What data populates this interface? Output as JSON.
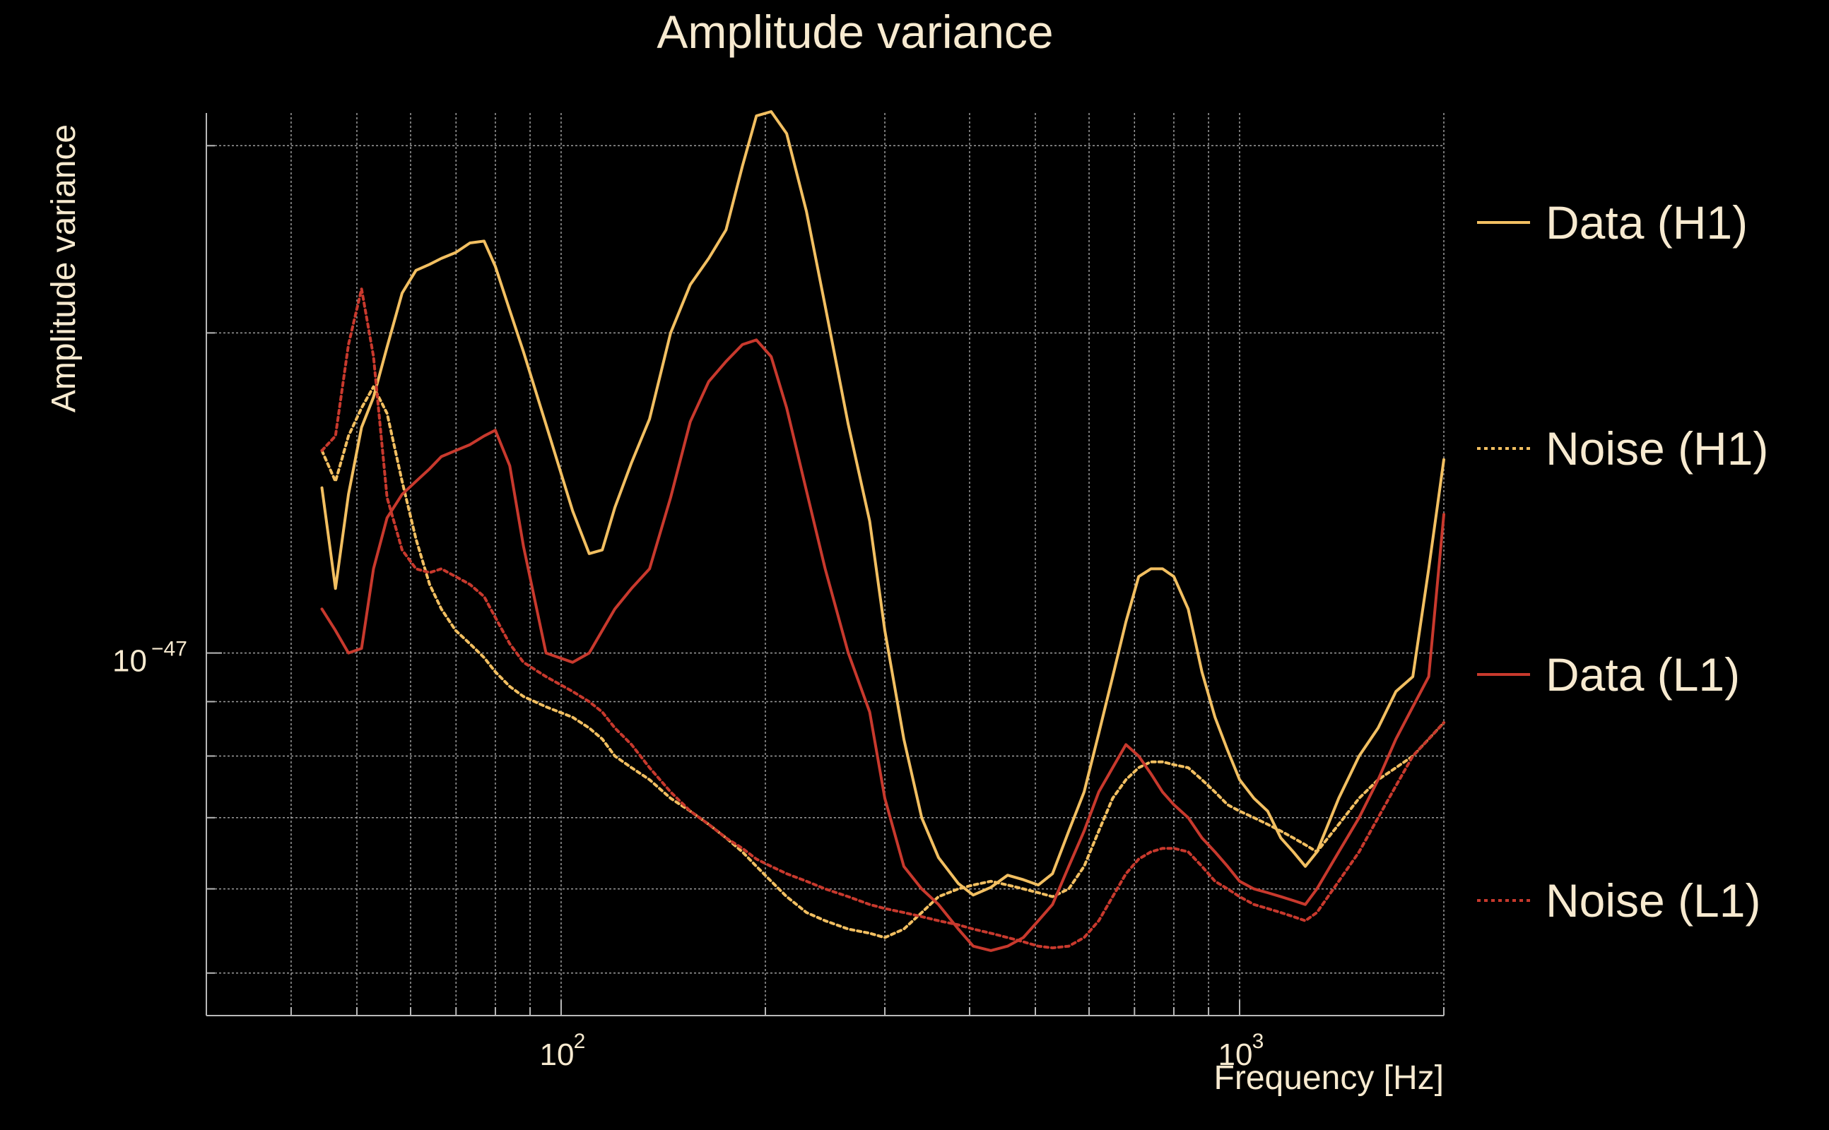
{
  "chart_data": {
    "type": "line",
    "title": "Amplitude variance",
    "xlabel": "Frequency [Hz]",
    "ylabel": "Amplitude variance",
    "xscale": "log",
    "yscale": "log",
    "xlim": [
      30,
      2000
    ],
    "ylim": [
      4.56e-48,
      3.22e-47
    ],
    "grid": true,
    "legend_position": "right",
    "x_major_ticks": [
      {
        "value": 100,
        "base": "10",
        "exp": "2"
      },
      {
        "value": 1000,
        "base": "10",
        "exp": "3"
      }
    ],
    "y_major_ticks": [
      {
        "value": 1e-47,
        "base": "10",
        "exp": "−47"
      }
    ],
    "series": [
      {
        "name": "Data (H1)",
        "color": "#f2bf61",
        "style": "solid",
        "points": [
          [
            44.4,
            1.43e-47
          ],
          [
            46.5,
            1.15e-47
          ],
          [
            48.6,
            1.41e-47
          ],
          [
            50.8,
            1.63e-47
          ],
          [
            52.9,
            1.74e-47
          ],
          [
            55.4,
            1.94e-47
          ],
          [
            58.3,
            2.18e-47
          ],
          [
            61.1,
            2.29e-47
          ],
          [
            64,
            2.32e-47
          ],
          [
            66.6,
            2.35e-47
          ],
          [
            69.9,
            2.38e-47
          ],
          [
            73.4,
            2.43e-47
          ],
          [
            77,
            2.44e-47
          ],
          [
            80,
            2.31e-47
          ],
          [
            84,
            2.1e-47
          ],
          [
            88,
            1.92e-47
          ],
          [
            95,
            1.64e-47
          ],
          [
            104,
            1.36e-47
          ],
          [
            110,
            1.24e-47
          ],
          [
            115,
            1.25e-47
          ],
          [
            120,
            1.37e-47
          ],
          [
            127,
            1.51e-47
          ],
          [
            135,
            1.66e-47
          ],
          [
            145,
            2e-47
          ],
          [
            155,
            2.22e-47
          ],
          [
            165,
            2.35e-47
          ],
          [
            175,
            2.5e-47
          ],
          [
            185,
            2.87e-47
          ],
          [
            194,
            3.2e-47
          ],
          [
            204,
            3.23e-47
          ],
          [
            215,
            3.08e-47
          ],
          [
            230,
            2.6e-47
          ],
          [
            245,
            2.12e-47
          ],
          [
            265,
            1.64e-47
          ],
          [
            285,
            1.33e-47
          ],
          [
            300,
            1.05e-47
          ],
          [
            320,
            8.3e-48
          ],
          [
            340,
            7e-48
          ],
          [
            360,
            6.42e-48
          ],
          [
            385,
            6.07e-48
          ],
          [
            405,
            5.92e-48
          ],
          [
            430,
            6.02e-48
          ],
          [
            455,
            6.18e-48
          ],
          [
            480,
            6.12e-48
          ],
          [
            505,
            6.05e-48
          ],
          [
            530,
            6.2e-48
          ],
          [
            560,
            6.8e-48
          ],
          [
            590,
            7.4e-48
          ],
          [
            620,
            8.4e-48
          ],
          [
            650,
            9.5e-48
          ],
          [
            680,
            1.07e-47
          ],
          [
            710,
            1.18e-47
          ],
          [
            740,
            1.2e-47
          ],
          [
            770,
            1.2e-47
          ],
          [
            800,
            1.18e-47
          ],
          [
            840,
            1.1e-47
          ],
          [
            880,
            9.6e-48
          ],
          [
            920,
            8.7e-48
          ],
          [
            960,
            8.1e-48
          ],
          [
            1000,
            7.6e-48
          ],
          [
            1050,
            7.3e-48
          ],
          [
            1100,
            7.1e-48
          ],
          [
            1150,
            6.7e-48
          ],
          [
            1200,
            6.5e-48
          ],
          [
            1250,
            6.3e-48
          ],
          [
            1300,
            6.5e-48
          ],
          [
            1400,
            7.3e-48
          ],
          [
            1500,
            8e-48
          ],
          [
            1600,
            8.5e-48
          ],
          [
            1700,
            9.2e-48
          ],
          [
            1800,
            9.5e-48
          ],
          [
            1900,
            1.2e-47
          ],
          [
            2000,
            1.52e-47
          ]
        ]
      },
      {
        "name": "Noise (H1)",
        "color": "#f2bf61",
        "style": "dotted",
        "points": [
          [
            44.4,
            1.55e-47
          ],
          [
            46.5,
            1.45e-47
          ],
          [
            48.6,
            1.6e-47
          ],
          [
            50.8,
            1.7e-47
          ],
          [
            52.9,
            1.78e-47
          ],
          [
            55.4,
            1.68e-47
          ],
          [
            58.3,
            1.45e-47
          ],
          [
            61.1,
            1.28e-47
          ],
          [
            64,
            1.16e-47
          ],
          [
            66.6,
            1.1e-47
          ],
          [
            69.9,
            1.05e-47
          ],
          [
            73.4,
            1.02e-47
          ],
          [
            77,
            9.9e-48
          ],
          [
            80,
            9.6e-48
          ],
          [
            84,
            9.3e-48
          ],
          [
            88,
            9.1e-48
          ],
          [
            95,
            8.9e-48
          ],
          [
            104,
            8.7e-48
          ],
          [
            110,
            8.5e-48
          ],
          [
            115,
            8.3e-48
          ],
          [
            120,
            8e-48
          ],
          [
            127,
            7.8e-48
          ],
          [
            135,
            7.6e-48
          ],
          [
            145,
            7.3e-48
          ],
          [
            155,
            7.1e-48
          ],
          [
            165,
            6.9e-48
          ],
          [
            175,
            6.7e-48
          ],
          [
            185,
            6.5e-48
          ],
          [
            194,
            6.3e-48
          ],
          [
            204,
            6.1e-48
          ],
          [
            215,
            5.9e-48
          ],
          [
            230,
            5.7e-48
          ],
          [
            245,
            5.6e-48
          ],
          [
            265,
            5.5e-48
          ],
          [
            285,
            5.45e-48
          ],
          [
            300,
            5.4e-48
          ],
          [
            320,
            5.5e-48
          ],
          [
            340,
            5.7e-48
          ],
          [
            360,
            5.9e-48
          ],
          [
            385,
            6e-48
          ],
          [
            405,
            6.05e-48
          ],
          [
            430,
            6.1e-48
          ],
          [
            455,
            6.05e-48
          ],
          [
            480,
            6e-48
          ],
          [
            505,
            5.95e-48
          ],
          [
            530,
            5.9e-48
          ],
          [
            560,
            6e-48
          ],
          [
            590,
            6.3e-48
          ],
          [
            620,
            6.8e-48
          ],
          [
            650,
            7.3e-48
          ],
          [
            680,
            7.6e-48
          ],
          [
            710,
            7.8e-48
          ],
          [
            740,
            7.9e-48
          ],
          [
            770,
            7.9e-48
          ],
          [
            800,
            7.85e-48
          ],
          [
            840,
            7.8e-48
          ],
          [
            880,
            7.6e-48
          ],
          [
            920,
            7.4e-48
          ],
          [
            960,
            7.2e-48
          ],
          [
            1000,
            7.1e-48
          ],
          [
            1050,
            7e-48
          ],
          [
            1100,
            6.9e-48
          ],
          [
            1150,
            6.8e-48
          ],
          [
            1200,
            6.7e-48
          ],
          [
            1250,
            6.6e-48
          ],
          [
            1300,
            6.5e-48
          ],
          [
            1400,
            6.9e-48
          ],
          [
            1500,
            7.3e-48
          ],
          [
            1600,
            7.6e-48
          ],
          [
            1700,
            7.8e-48
          ],
          [
            1800,
            8e-48
          ],
          [
            1900,
            8.3e-48
          ],
          [
            2000,
            8.6e-48
          ]
        ]
      },
      {
        "name": "Data (L1)",
        "color": "#c8392d",
        "style": "solid",
        "points": [
          [
            44.4,
            1.1e-47
          ],
          [
            46.5,
            1.05e-47
          ],
          [
            48.6,
            1e-47
          ],
          [
            50.8,
            1.01e-47
          ],
          [
            52.9,
            1.2e-47
          ],
          [
            55.4,
            1.34e-47
          ],
          [
            58.3,
            1.41e-47
          ],
          [
            61.1,
            1.45e-47
          ],
          [
            64,
            1.49e-47
          ],
          [
            66.6,
            1.53e-47
          ],
          [
            69.9,
            1.55e-47
          ],
          [
            73.4,
            1.57e-47
          ],
          [
            77,
            1.6e-47
          ],
          [
            80,
            1.62e-47
          ],
          [
            84,
            1.5e-47
          ],
          [
            88,
            1.26e-47
          ],
          [
            95,
            1e-47
          ],
          [
            104,
            9.8e-48
          ],
          [
            110,
            1e-47
          ],
          [
            115,
            1.05e-47
          ],
          [
            120,
            1.1e-47
          ],
          [
            127,
            1.15e-47
          ],
          [
            135,
            1.2e-47
          ],
          [
            145,
            1.4e-47
          ],
          [
            155,
            1.65e-47
          ],
          [
            165,
            1.8e-47
          ],
          [
            175,
            1.88e-47
          ],
          [
            185,
            1.95e-47
          ],
          [
            194,
            1.97e-47
          ],
          [
            204,
            1.9e-47
          ],
          [
            215,
            1.7e-47
          ],
          [
            230,
            1.42e-47
          ],
          [
            245,
            1.2e-47
          ],
          [
            265,
            1e-47
          ],
          [
            285,
            8.8e-48
          ],
          [
            300,
            7.3e-48
          ],
          [
            320,
            6.3e-48
          ],
          [
            340,
            6e-48
          ],
          [
            360,
            5.8e-48
          ],
          [
            385,
            5.5e-48
          ],
          [
            405,
            5.3e-48
          ],
          [
            430,
            5.25e-48
          ],
          [
            455,
            5.3e-48
          ],
          [
            480,
            5.4e-48
          ],
          [
            505,
            5.6e-48
          ],
          [
            530,
            5.8e-48
          ],
          [
            560,
            6.3e-48
          ],
          [
            590,
            6.8e-48
          ],
          [
            620,
            7.4e-48
          ],
          [
            650,
            7.8e-48
          ],
          [
            680,
            8.2e-48
          ],
          [
            710,
            8e-48
          ],
          [
            740,
            7.7e-48
          ],
          [
            770,
            7.4e-48
          ],
          [
            800,
            7.2e-48
          ],
          [
            840,
            7e-48
          ],
          [
            880,
            6.7e-48
          ],
          [
            920,
            6.5e-48
          ],
          [
            960,
            6.3e-48
          ],
          [
            1000,
            6.1e-48
          ],
          [
            1050,
            6e-48
          ],
          [
            1100,
            5.95e-48
          ],
          [
            1150,
            5.9e-48
          ],
          [
            1200,
            5.85e-48
          ],
          [
            1250,
            5.8e-48
          ],
          [
            1300,
            6e-48
          ],
          [
            1400,
            6.5e-48
          ],
          [
            1500,
            7e-48
          ],
          [
            1600,
            7.6e-48
          ],
          [
            1700,
            8.3e-48
          ],
          [
            1800,
            8.9e-48
          ],
          [
            1900,
            9.5e-48
          ],
          [
            2000,
            1.35e-47
          ]
        ]
      },
      {
        "name": "Noise (L1)",
        "color": "#c8392d",
        "style": "dotted",
        "points": [
          [
            44.4,
            1.55e-47
          ],
          [
            46.5,
            1.6e-47
          ],
          [
            48.6,
            1.95e-47
          ],
          [
            50.8,
            2.2e-47
          ],
          [
            52.9,
            1.9e-47
          ],
          [
            55.4,
            1.4e-47
          ],
          [
            58.3,
            1.25e-47
          ],
          [
            61.1,
            1.2e-47
          ],
          [
            64,
            1.19e-47
          ],
          [
            66.6,
            1.2e-47
          ],
          [
            69.9,
            1.18e-47
          ],
          [
            73.4,
            1.16e-47
          ],
          [
            77,
            1.13e-47
          ],
          [
            80,
            1.08e-47
          ],
          [
            84,
            1.02e-47
          ],
          [
            88,
            9.8e-48
          ],
          [
            95,
            9.5e-48
          ],
          [
            104,
            9.2e-48
          ],
          [
            110,
            9e-48
          ],
          [
            115,
            8.8e-48
          ],
          [
            120,
            8.5e-48
          ],
          [
            127,
            8.2e-48
          ],
          [
            135,
            7.8e-48
          ],
          [
            145,
            7.4e-48
          ],
          [
            155,
            7.1e-48
          ],
          [
            165,
            6.9e-48
          ],
          [
            175,
            6.7e-48
          ],
          [
            185,
            6.55e-48
          ],
          [
            194,
            6.4e-48
          ],
          [
            204,
            6.3e-48
          ],
          [
            215,
            6.2e-48
          ],
          [
            230,
            6.1e-48
          ],
          [
            245,
            6e-48
          ],
          [
            265,
            5.9e-48
          ],
          [
            285,
            5.8e-48
          ],
          [
            300,
            5.75e-48
          ],
          [
            320,
            5.7e-48
          ],
          [
            340,
            5.65e-48
          ],
          [
            360,
            5.6e-48
          ],
          [
            385,
            5.55e-48
          ],
          [
            405,
            5.5e-48
          ],
          [
            430,
            5.45e-48
          ],
          [
            455,
            5.4e-48
          ],
          [
            480,
            5.35e-48
          ],
          [
            505,
            5.3e-48
          ],
          [
            530,
            5.28e-48
          ],
          [
            560,
            5.3e-48
          ],
          [
            590,
            5.4e-48
          ],
          [
            620,
            5.6e-48
          ],
          [
            650,
            5.9e-48
          ],
          [
            680,
            6.2e-48
          ],
          [
            710,
            6.4e-48
          ],
          [
            740,
            6.5e-48
          ],
          [
            770,
            6.55e-48
          ],
          [
            800,
            6.55e-48
          ],
          [
            840,
            6.5e-48
          ],
          [
            880,
            6.3e-48
          ],
          [
            920,
            6.1e-48
          ],
          [
            960,
            6e-48
          ],
          [
            1000,
            5.9e-48
          ],
          [
            1050,
            5.8e-48
          ],
          [
            1100,
            5.75e-48
          ],
          [
            1150,
            5.7e-48
          ],
          [
            1200,
            5.65e-48
          ],
          [
            1250,
            5.6e-48
          ],
          [
            1300,
            5.7e-48
          ],
          [
            1400,
            6.1e-48
          ],
          [
            1500,
            6.5e-48
          ],
          [
            1600,
            7e-48
          ],
          [
            1700,
            7.5e-48
          ],
          [
            1800,
            8e-48
          ],
          [
            1900,
            8.3e-48
          ],
          [
            2000,
            8.6e-48
          ]
        ]
      }
    ]
  }
}
